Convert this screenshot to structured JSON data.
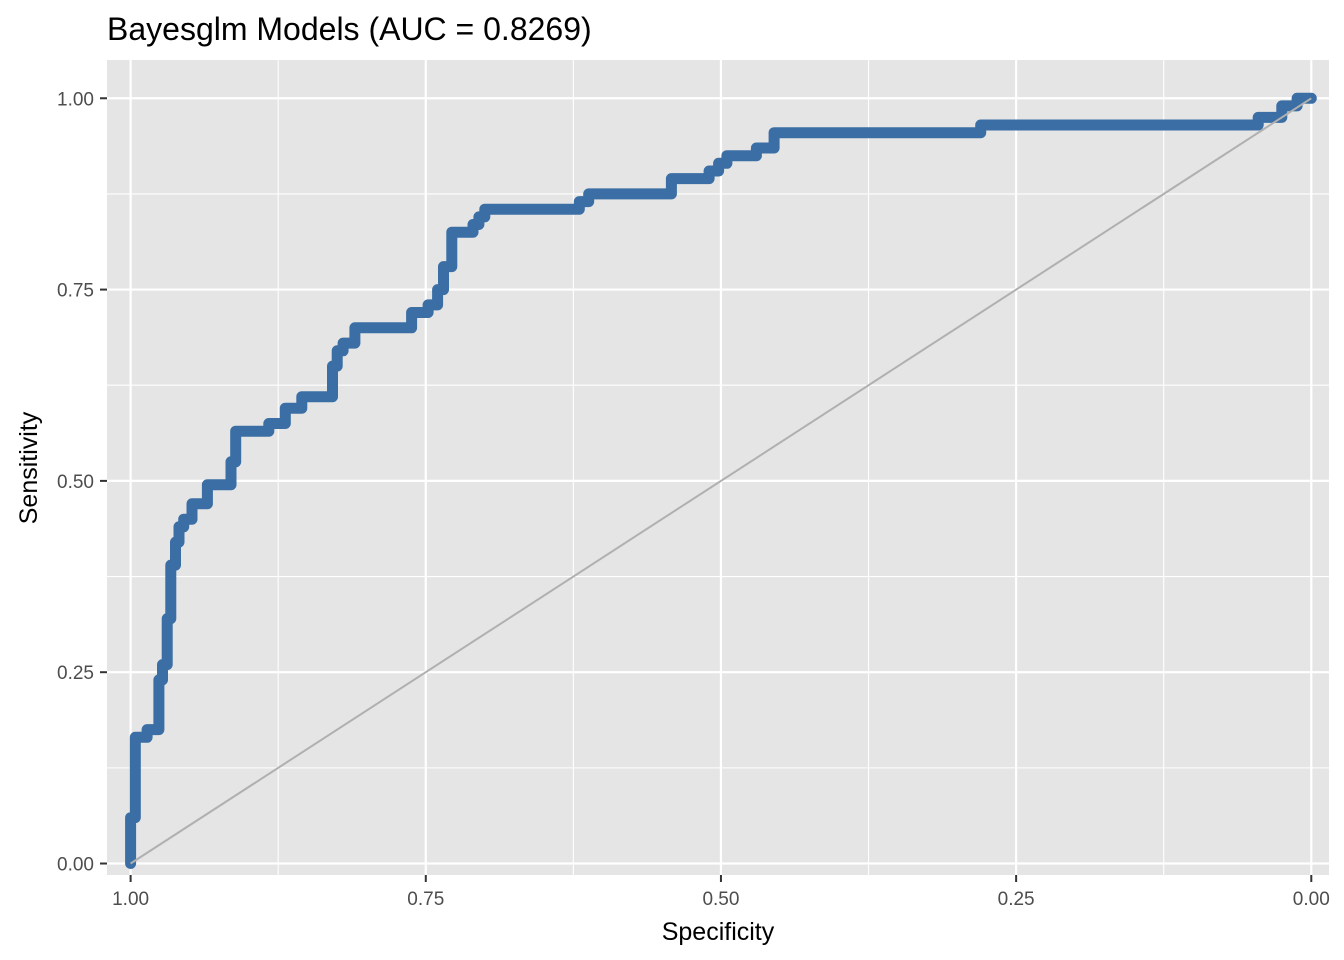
{
  "chart_data": {
    "type": "line",
    "title": "Bayesglm Models (AUC = 0.8269)",
    "xlabel": "Specificity",
    "ylabel": "Sensitivity",
    "xlim": [
      1.02,
      -0.015
    ],
    "ylim": [
      -0.015,
      1.05
    ],
    "x_reversed": true,
    "x_ticks": [
      1.0,
      0.75,
      0.5,
      0.25,
      0.0
    ],
    "x_tick_labels": [
      "1.00",
      "0.75",
      "0.50",
      "0.25",
      "0.00"
    ],
    "y_ticks": [
      0.0,
      0.25,
      0.5,
      0.75,
      1.0
    ],
    "y_tick_labels": [
      "0.00",
      "0.25",
      "0.50",
      "0.75",
      "1.00"
    ],
    "grid": true,
    "colors": {
      "panel": "#e5e5e5",
      "grid": "#ffffff",
      "roc": "#3a6ea5",
      "reference": "#b0b0b0"
    },
    "series": [
      {
        "style": "roc-curve",
        "points": [
          [
            1.0,
            0.0
          ],
          [
            1.0,
            0.06
          ],
          [
            0.996,
            0.06
          ],
          [
            0.996,
            0.165
          ],
          [
            0.986,
            0.165
          ],
          [
            0.986,
            0.175
          ],
          [
            0.976,
            0.175
          ],
          [
            0.976,
            0.24
          ],
          [
            0.973,
            0.24
          ],
          [
            0.973,
            0.26
          ],
          [
            0.969,
            0.26
          ],
          [
            0.969,
            0.32
          ],
          [
            0.966,
            0.32
          ],
          [
            0.966,
            0.39
          ],
          [
            0.962,
            0.39
          ],
          [
            0.962,
            0.42
          ],
          [
            0.959,
            0.42
          ],
          [
            0.959,
            0.44
          ],
          [
            0.955,
            0.44
          ],
          [
            0.955,
            0.45
          ],
          [
            0.948,
            0.45
          ],
          [
            0.948,
            0.47
          ],
          [
            0.935,
            0.47
          ],
          [
            0.935,
            0.495
          ],
          [
            0.915,
            0.495
          ],
          [
            0.915,
            0.525
          ],
          [
            0.911,
            0.525
          ],
          [
            0.911,
            0.565
          ],
          [
            0.883,
            0.565
          ],
          [
            0.883,
            0.575
          ],
          [
            0.869,
            0.575
          ],
          [
            0.869,
            0.595
          ],
          [
            0.855,
            0.595
          ],
          [
            0.855,
            0.61
          ],
          [
            0.829,
            0.61
          ],
          [
            0.829,
            0.65
          ],
          [
            0.825,
            0.65
          ],
          [
            0.825,
            0.67
          ],
          [
            0.82,
            0.67
          ],
          [
            0.82,
            0.68
          ],
          [
            0.81,
            0.68
          ],
          [
            0.81,
            0.7
          ],
          [
            0.762,
            0.7
          ],
          [
            0.762,
            0.72
          ],
          [
            0.748,
            0.72
          ],
          [
            0.748,
            0.73
          ],
          [
            0.74,
            0.73
          ],
          [
            0.74,
            0.75
          ],
          [
            0.735,
            0.75
          ],
          [
            0.735,
            0.78
          ],
          [
            0.728,
            0.78
          ],
          [
            0.728,
            0.825
          ],
          [
            0.71,
            0.825
          ],
          [
            0.71,
            0.835
          ],
          [
            0.705,
            0.835
          ],
          [
            0.705,
            0.845
          ],
          [
            0.7,
            0.845
          ],
          [
            0.7,
            0.855
          ],
          [
            0.62,
            0.855
          ],
          [
            0.62,
            0.865
          ],
          [
            0.612,
            0.865
          ],
          [
            0.612,
            0.875
          ],
          [
            0.542,
            0.875
          ],
          [
            0.542,
            0.895
          ],
          [
            0.51,
            0.895
          ],
          [
            0.51,
            0.905
          ],
          [
            0.502,
            0.905
          ],
          [
            0.502,
            0.915
          ],
          [
            0.495,
            0.915
          ],
          [
            0.495,
            0.925
          ],
          [
            0.47,
            0.925
          ],
          [
            0.47,
            0.935
          ],
          [
            0.455,
            0.935
          ],
          [
            0.455,
            0.955
          ],
          [
            0.28,
            0.955
          ],
          [
            0.28,
            0.965
          ],
          [
            0.045,
            0.965
          ],
          [
            0.045,
            0.975
          ],
          [
            0.025,
            0.975
          ],
          [
            0.025,
            0.99
          ],
          [
            0.012,
            0.99
          ],
          [
            0.012,
            1.0
          ],
          [
            0.0,
            1.0
          ]
        ]
      },
      {
        "style": "reference-diagonal",
        "points": [
          [
            1.0,
            0.0
          ],
          [
            0.0,
            1.0
          ]
        ]
      }
    ]
  }
}
